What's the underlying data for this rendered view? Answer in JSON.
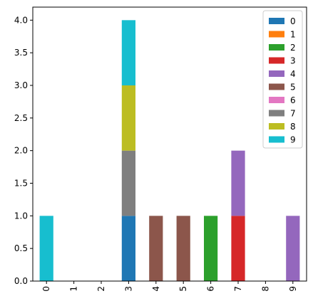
{
  "chart_data": {
    "type": "bar",
    "stacked": true,
    "categories": [
      "0",
      "1",
      "2",
      "3",
      "4",
      "5",
      "6",
      "7",
      "8",
      "9"
    ],
    "series": [
      {
        "name": "0",
        "color": "#1f77b4",
        "values": [
          0,
          0,
          0,
          1,
          0,
          0,
          0,
          0,
          0,
          0
        ]
      },
      {
        "name": "1",
        "color": "#ff7f0e",
        "values": [
          0,
          0,
          0,
          0,
          0,
          0,
          0,
          0,
          0,
          0
        ]
      },
      {
        "name": "2",
        "color": "#2ca02c",
        "values": [
          0,
          0,
          0,
          0,
          0,
          0,
          1,
          0,
          0,
          0
        ]
      },
      {
        "name": "3",
        "color": "#d62728",
        "values": [
          0,
          0,
          0,
          0,
          0,
          0,
          0,
          1,
          0,
          0
        ]
      },
      {
        "name": "4",
        "color": "#9467bd",
        "values": [
          0,
          0,
          0,
          0,
          0,
          0,
          0,
          1,
          0,
          1
        ]
      },
      {
        "name": "5",
        "color": "#8c564b",
        "values": [
          0,
          0,
          0,
          0,
          1,
          1,
          0,
          0,
          0,
          0
        ]
      },
      {
        "name": "6",
        "color": "#e377c2",
        "values": [
          0,
          0,
          0,
          0,
          0,
          0,
          0,
          0,
          0,
          0
        ]
      },
      {
        "name": "7",
        "color": "#7f7f7f",
        "values": [
          0,
          0,
          0,
          1,
          0,
          0,
          0,
          0,
          0,
          0
        ]
      },
      {
        "name": "8",
        "color": "#bcbd22",
        "values": [
          0,
          0,
          0,
          1,
          0,
          0,
          0,
          0,
          0,
          0
        ]
      },
      {
        "name": "9",
        "color": "#17becf",
        "values": [
          1,
          0,
          0,
          1,
          0,
          0,
          0,
          0,
          0,
          0
        ]
      }
    ],
    "ylim": [
      0,
      4.2
    ],
    "yticks": [
      "0.0",
      "0.5",
      "1.0",
      "1.5",
      "2.0",
      "2.5",
      "3.0",
      "3.5",
      "4.0"
    ],
    "legend": "top-right",
    "grid": false,
    "xlabel": "",
    "ylabel": "",
    "title": ""
  }
}
